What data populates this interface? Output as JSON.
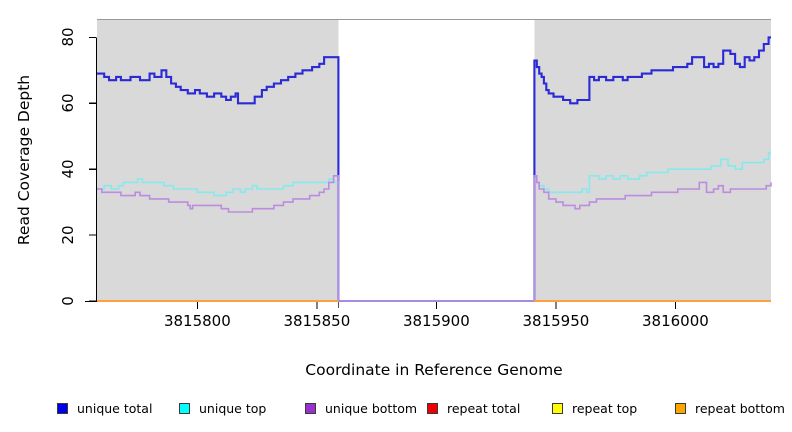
{
  "axes": {
    "x_title": "Coordinate in Reference Genome",
    "y_title": "Read Coverage Depth",
    "x_tick_labels": [
      "3815800",
      "3815850",
      "3815900",
      "3815950",
      "3816000"
    ],
    "y_tick_labels": [
      "0",
      "20",
      "40",
      "60",
      "80"
    ]
  },
  "legend": {
    "items": [
      {
        "label": "unique total",
        "color": "#0000E8"
      },
      {
        "label": "unique top",
        "color": "#00FFFF"
      },
      {
        "label": "unique bottom",
        "color": "#9932CC"
      },
      {
        "label": "repeat total",
        "color": "#EE0000"
      },
      {
        "label": "repeat top",
        "color": "#FFFF00"
      },
      {
        "label": "repeat bottom",
        "color": "#FFA500"
      }
    ]
  },
  "chart_data": {
    "type": "line",
    "subtype": "step-coverage",
    "title": "",
    "xlabel": "Coordinate in Reference Genome",
    "ylabel": "Read Coverage Depth",
    "xlim": [
      3815758,
      3816040
    ],
    "ylim": [
      0,
      85
    ],
    "xticks": [
      3815800,
      3815850,
      3815900,
      3815950,
      3816000
    ],
    "yticks": [
      0,
      20,
      40,
      60,
      80
    ],
    "grid": false,
    "legend_position": "bottom",
    "plot_bg": "#FFFFFF",
    "region_border_color": "#999999",
    "background_regions": [
      {
        "x0": 3815758,
        "x1": 3815859,
        "color": "#D9D9D9"
      },
      {
        "x0": 3815859,
        "x1": 3815941,
        "color": "#FFFFFF"
      },
      {
        "x0": 3815941,
        "x1": 3816040,
        "color": "#D9D9D9"
      }
    ],
    "gap": {
      "x0": 3815859,
      "x1": 3815941
    },
    "series": [
      {
        "name": "unique total",
        "line_color": "#2A2AD6",
        "width": 2.1,
        "segments": [
          [
            [
              3815758,
              69
            ],
            [
              3815761,
              68
            ],
            [
              3815763,
              67
            ],
            [
              3815766,
              68
            ],
            [
              3815768,
              67
            ],
            [
              3815772,
              68
            ],
            [
              3815776,
              67
            ],
            [
              3815780,
              69
            ],
            [
              3815782,
              68
            ],
            [
              3815785,
              70
            ],
            [
              3815787,
              68
            ],
            [
              3815789,
              66
            ],
            [
              3815791,
              65
            ],
            [
              3815793,
              64
            ],
            [
              3815796,
              63
            ],
            [
              3815799,
              64
            ],
            [
              3815801,
              63
            ],
            [
              3815804,
              62
            ],
            [
              3815807,
              63
            ],
            [
              3815810,
              62
            ],
            [
              3815812,
              61
            ],
            [
              3815814,
              62
            ],
            [
              3815816,
              63
            ],
            [
              3815817,
              60
            ],
            [
              3815824,
              62
            ],
            [
              3815827,
              64
            ],
            [
              3815829,
              65
            ],
            [
              3815832,
              66
            ],
            [
              3815835,
              67
            ],
            [
              3815838,
              68
            ],
            [
              3815841,
              69
            ],
            [
              3815844,
              70
            ],
            [
              3815848,
              71
            ],
            [
              3815851,
              72
            ],
            [
              3815853,
              74
            ],
            [
              3815859,
              74
            ],
            [
              3815859,
              0
            ],
            [
              3815941,
              0
            ],
            [
              3815941,
              73
            ],
            [
              3815942,
              71
            ],
            [
              3815943,
              69
            ],
            [
              3815944,
              68
            ],
            [
              3815945,
              66
            ],
            [
              3815946,
              64
            ],
            [
              3815947,
              63
            ],
            [
              3815949,
              62
            ],
            [
              3815953,
              61
            ],
            [
              3815956,
              60
            ],
            [
              3815959,
              61
            ],
            [
              3815963,
              61
            ],
            [
              3815964,
              68
            ],
            [
              3815966,
              67
            ],
            [
              3815968,
              68
            ],
            [
              3815971,
              67
            ],
            [
              3815974,
              68
            ],
            [
              3815978,
              67
            ],
            [
              3815980,
              68
            ],
            [
              3815984,
              68
            ],
            [
              3815986,
              69
            ],
            [
              3815990,
              70
            ],
            [
              3815995,
              70
            ],
            [
              3815999,
              71
            ],
            [
              3816003,
              71
            ],
            [
              3816005,
              72
            ],
            [
              3816007,
              74
            ],
            [
              3816010,
              74
            ],
            [
              3816012,
              71
            ],
            [
              3816014,
              72
            ],
            [
              3816016,
              71
            ],
            [
              3816018,
              72
            ],
            [
              3816020,
              76
            ],
            [
              3816023,
              75
            ],
            [
              3816025,
              72
            ],
            [
              3816027,
              71
            ],
            [
              3816029,
              74
            ],
            [
              3816031,
              73
            ],
            [
              3816033,
              74
            ],
            [
              3816035,
              76
            ],
            [
              3816037,
              78
            ],
            [
              3816039,
              80
            ],
            [
              3816040,
              80
            ]
          ]
        ]
      },
      {
        "name": "unique top",
        "line_color": "#86E9EC",
        "width": 1.6,
        "segments": [
          [
            [
              3815758,
              34
            ],
            [
              3815761,
              35
            ],
            [
              3815764,
              34
            ],
            [
              3815767,
              35
            ],
            [
              3815769,
              36
            ],
            [
              3815773,
              36
            ],
            [
              3815775,
              37
            ],
            [
              3815777,
              36
            ],
            [
              3815783,
              36
            ],
            [
              3815786,
              35
            ],
            [
              3815790,
              34
            ],
            [
              3815800,
              33
            ],
            [
              3815807,
              32
            ],
            [
              3815812,
              33
            ],
            [
              3815815,
              34
            ],
            [
              3815818,
              33
            ],
            [
              3815820,
              34
            ],
            [
              3815823,
              35
            ],
            [
              3815825,
              34
            ],
            [
              3815832,
              34
            ],
            [
              3815836,
              35
            ],
            [
              3815840,
              36
            ],
            [
              3815850,
              36
            ],
            [
              3815855,
              37
            ],
            [
              3815857,
              36
            ],
            [
              3815859,
              36
            ],
            [
              3815859,
              0
            ],
            [
              3815941,
              0
            ],
            [
              3815941,
              37
            ],
            [
              3815942,
              36
            ],
            [
              3815943,
              35
            ],
            [
              3815945,
              34
            ],
            [
              3815947,
              33
            ],
            [
              3815958,
              33
            ],
            [
              3815961,
              34
            ],
            [
              3815963,
              33
            ],
            [
              3815964,
              38
            ],
            [
              3815968,
              37
            ],
            [
              3815971,
              38
            ],
            [
              3815974,
              37
            ],
            [
              3815977,
              38
            ],
            [
              3815980,
              37
            ],
            [
              3815985,
              38
            ],
            [
              3815988,
              39
            ],
            [
              3815993,
              39
            ],
            [
              3815997,
              40
            ],
            [
              3816008,
              40
            ],
            [
              3816012,
              40
            ],
            [
              3816015,
              41
            ],
            [
              3816019,
              43
            ],
            [
              3816022,
              41
            ],
            [
              3816025,
              40
            ],
            [
              3816028,
              42
            ],
            [
              3816034,
              42
            ],
            [
              3816037,
              43
            ],
            [
              3816039,
              45
            ],
            [
              3816040,
              45
            ]
          ]
        ]
      },
      {
        "name": "unique bottom",
        "line_color": "#BD8CE0",
        "width": 1.6,
        "segments": [
          [
            [
              3815758,
              34
            ],
            [
              3815760,
              33
            ],
            [
              3815768,
              32
            ],
            [
              3815774,
              33
            ],
            [
              3815776,
              32
            ],
            [
              3815780,
              31
            ],
            [
              3815788,
              30
            ],
            [
              3815796,
              29
            ],
            [
              3815797,
              28
            ],
            [
              3815798,
              29
            ],
            [
              3815810,
              28
            ],
            [
              3815813,
              27
            ],
            [
              3815819,
              27
            ],
            [
              3815823,
              28
            ],
            [
              3815832,
              29
            ],
            [
              3815836,
              30
            ],
            [
              3815840,
              31
            ],
            [
              3815847,
              32
            ],
            [
              3815851,
              33
            ],
            [
              3815853,
              34
            ],
            [
              3815855,
              36
            ],
            [
              3815857,
              38
            ],
            [
              3815859,
              38
            ],
            [
              3815859,
              0
            ],
            [
              3815941,
              0
            ],
            [
              3815941,
              38
            ],
            [
              3815942,
              36
            ],
            [
              3815943,
              34
            ],
            [
              3815945,
              33
            ],
            [
              3815947,
              31
            ],
            [
              3815950,
              30
            ],
            [
              3815953,
              29
            ],
            [
              3815958,
              28
            ],
            [
              3815960,
              29
            ],
            [
              3815964,
              30
            ],
            [
              3815967,
              31
            ],
            [
              3815979,
              32
            ],
            [
              3815990,
              33
            ],
            [
              3816001,
              34
            ],
            [
              3816008,
              34
            ],
            [
              3816010,
              36
            ],
            [
              3816013,
              33
            ],
            [
              3816016,
              34
            ],
            [
              3816018,
              35
            ],
            [
              3816020,
              33
            ],
            [
              3816023,
              34
            ],
            [
              3816038,
              35
            ],
            [
              3816040,
              36
            ]
          ]
        ]
      },
      {
        "name": "repeat total",
        "line_color": "#CC0000",
        "width": 1.6,
        "segments": [
          [
            [
              3815758,
              0
            ],
            [
              3815859,
              0
            ]
          ],
          [
            [
              3815941,
              0
            ],
            [
              3816040,
              0
            ]
          ]
        ]
      },
      {
        "name": "repeat top",
        "line_color": "#EEEE00",
        "width": 1.6,
        "segments": [
          [
            [
              3815758,
              0
            ],
            [
              3815859,
              0
            ]
          ],
          [
            [
              3815941,
              0
            ],
            [
              3816040,
              0
            ]
          ]
        ]
      },
      {
        "name": "repeat bottom",
        "line_color": "#FFA03C",
        "width": 2,
        "segments": [
          [
            [
              3815758,
              0
            ],
            [
              3815859,
              0
            ]
          ],
          [
            [
              3815941,
              0
            ],
            [
              3816040,
              0
            ]
          ]
        ]
      }
    ]
  }
}
